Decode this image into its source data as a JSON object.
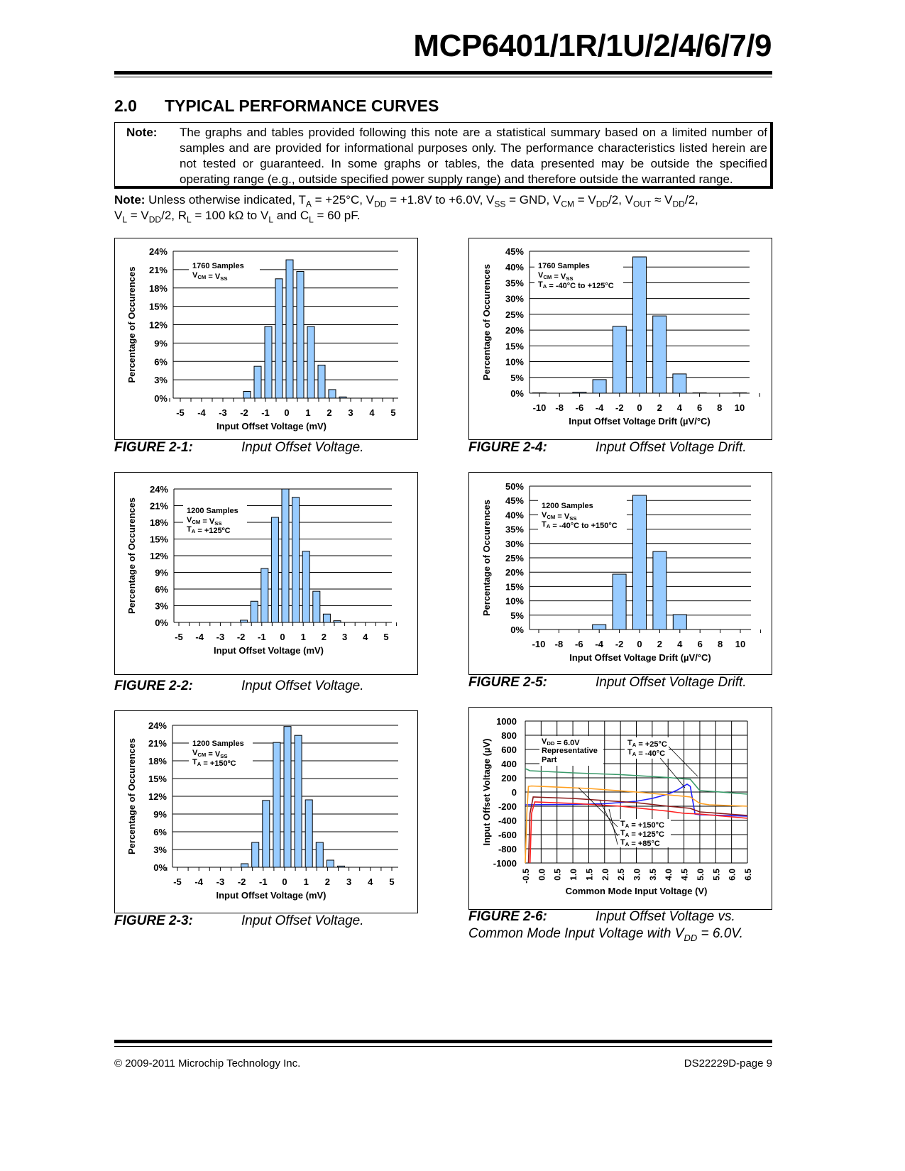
{
  "header": {
    "title": "MCP6401/1R/1U/2/4/6/7/9"
  },
  "section": {
    "number": "2.0",
    "title": "TYPICAL PERFORMANCE CURVES"
  },
  "note_box": {
    "label": "Note:",
    "text": "The graphs and tables provided following this note are a statistical summary based on a limited number of samples and are provided for informational purposes only. The performance characteristics listed herein are not tested or guaranteed. In some graphs or tables, the data presented may be outside the specified operating range (e.g., outside specified power supply range) and therefore outside the warranted range."
  },
  "conditions": {
    "line1": [
      {
        "t": "Note:",
        "b": true
      },
      {
        "t": " Unless otherwise indicated, T"
      },
      {
        "t": "A",
        "sub": true
      },
      {
        "t": " = +25°C, V"
      },
      {
        "t": "DD",
        "sub": true
      },
      {
        "t": " = +1.8V to +6.0V, V"
      },
      {
        "t": "SS",
        "sub": true
      },
      {
        "t": " = GND, V"
      },
      {
        "t": "CM",
        "sub": true
      },
      {
        "t": " = V"
      },
      {
        "t": "DD",
        "sub": true
      },
      {
        "t": "/2, V"
      },
      {
        "t": "OUT",
        "sub": true
      },
      {
        "t": " ≈ V"
      },
      {
        "t": "DD",
        "sub": true
      },
      {
        "t": "/2,"
      }
    ],
    "line2": [
      {
        "t": "V"
      },
      {
        "t": "L",
        "sub": true
      },
      {
        "t": " = V"
      },
      {
        "t": "DD",
        "sub": true
      },
      {
        "t": "/2, R"
      },
      {
        "t": "L",
        "sub": true
      },
      {
        "t": " = 100 kΩ to V"
      },
      {
        "t": "L",
        "sub": true
      },
      {
        "t": " and C"
      },
      {
        "t": "L",
        "sub": true
      },
      {
        "t": " = 60 pF."
      }
    ]
  },
  "figures": [
    {
      "label": "FIGURE 2-1:",
      "caption": [
        {
          "t": "Input Offset Voltage."
        }
      ]
    },
    {
      "label": "FIGURE 2-2:",
      "caption": [
        {
          "t": "Input Offset Voltage."
        }
      ]
    },
    {
      "label": "FIGURE 2-3:",
      "caption": [
        {
          "t": "Input Offset Voltage."
        }
      ]
    },
    {
      "label": "FIGURE 2-4:",
      "caption": [
        {
          "t": "Input Offset Voltage Drift."
        }
      ]
    },
    {
      "label": "FIGURE 2-5:",
      "caption": [
        {
          "t": "Input Offset Voltage Drift."
        }
      ]
    },
    {
      "label": "FIGURE 2-6:",
      "caption": [
        {
          "t": "Input Offset Voltage vs."
        }
      ],
      "caption2": [
        {
          "t": "Common Mode Input Voltage with V"
        },
        {
          "t": "DD",
          "sub": true
        },
        {
          "t": " = 6.0V."
        }
      ]
    }
  ],
  "chart_data": [
    {
      "type": "bar",
      "xlabel": "Input Offset Voltage (mV)",
      "ylabel": "Percentage of Occurences",
      "ylim": [
        0,
        24
      ],
      "yticks": [
        "0%",
        "3%",
        "6%",
        "9%",
        "12%",
        "15%",
        "18%",
        "21%",
        "24%"
      ],
      "xticks": [
        "-5",
        "-4",
        "-3",
        "-2",
        "-1",
        "0",
        "1",
        "2",
        "3",
        "4",
        "5"
      ],
      "x": [
        -2,
        -1.5,
        -1,
        -0.5,
        0,
        0.5,
        1,
        1.5,
        2,
        2.5
      ],
      "values": [
        1.1,
        5.2,
        11.7,
        19.5,
        22.6,
        20.7,
        11.7,
        5.4,
        1.4,
        0.2
      ],
      "annotation": [
        [
          {
            "t": "1760 Samples"
          }
        ],
        [
          {
            "t": "V"
          },
          {
            "t": "CM",
            "sub": true
          },
          {
            "t": " = V"
          },
          {
            "t": "SS",
            "sub": true
          }
        ]
      ],
      "grid": true
    },
    {
      "type": "bar",
      "xlabel": "Input Offset Voltage (mV)",
      "ylabel": "Percentage of Occurences",
      "ylim": [
        0,
        24
      ],
      "yticks": [
        "0%",
        "3%",
        "6%",
        "9%",
        "12%",
        "15%",
        "18%",
        "21%",
        "24%"
      ],
      "xticks": [
        "-5",
        "-4",
        "-3",
        "-2",
        "-1",
        "0",
        "1",
        "2",
        "3",
        "4",
        "5"
      ],
      "x": [
        -2,
        -1.5,
        -1,
        -0.5,
        0,
        0.5,
        1,
        1.5,
        2,
        2.5
      ],
      "values": [
        0.4,
        3.8,
        9.7,
        18.9,
        24.0,
        22.5,
        12.8,
        5.6,
        1.5,
        0.3
      ],
      "annotation": [
        [
          {
            "t": "1200 Samples"
          }
        ],
        [
          {
            "t": "V"
          },
          {
            "t": "CM",
            "sub": true
          },
          {
            "t": " = V"
          },
          {
            "t": "SS",
            "sub": true
          }
        ],
        [
          {
            "t": "T"
          },
          {
            "t": "A",
            "sub": true
          },
          {
            "t": " = +125ºC"
          }
        ]
      ],
      "grid": true
    },
    {
      "type": "bar",
      "xlabel": "Input Offset Voltage (mV)",
      "ylabel": "Percentage of Occurences",
      "ylim": [
        0,
        24
      ],
      "yticks": [
        "0%",
        "3%",
        "6%",
        "9%",
        "12%",
        "15%",
        "18%",
        "21%",
        "24%"
      ],
      "xticks": [
        "-5",
        "-4",
        "-3",
        "-2",
        "-1",
        "0",
        "1",
        "2",
        "3",
        "4",
        "5"
      ],
      "x": [
        -2,
        -1.5,
        -1,
        -0.5,
        0,
        0.5,
        1,
        1.5,
        2,
        2.5
      ],
      "values": [
        0.6,
        4.2,
        11.3,
        21.1,
        23.8,
        22.3,
        11.4,
        4.2,
        1.2,
        0.2
      ],
      "annotation": [
        [
          {
            "t": "1200 Samples"
          }
        ],
        [
          {
            "t": "V"
          },
          {
            "t": "CM",
            "sub": true
          },
          {
            "t": " = V"
          },
          {
            "t": "SS",
            "sub": true
          }
        ],
        [
          {
            "t": "T"
          },
          {
            "t": "A",
            "sub": true
          },
          {
            "t": " = +150ºC"
          }
        ]
      ],
      "grid": true
    },
    {
      "type": "bar",
      "xlabel": "Input Offset Voltage Drift (µV/°C)",
      "ylabel": "Percentage of Occurences",
      "ylim": [
        0,
        45
      ],
      "yticks": [
        "0%",
        "5%",
        "10%",
        "15%",
        "20%",
        "25%",
        "30%",
        "35%",
        "40%",
        "45%"
      ],
      "xticks": [
        "-10",
        "-8",
        "-6",
        "-4",
        "-2",
        "0",
        "2",
        "4",
        "6",
        "8",
        "10"
      ],
      "x": [
        -10,
        -6,
        -4,
        -2,
        0,
        2,
        4,
        6,
        10
      ],
      "values": [
        0.1,
        0.3,
        4.3,
        21.2,
        43.2,
        24.5,
        6.1,
        0.1,
        0.1
      ],
      "annotation": [
        [
          {
            "t": "1760 Samples"
          }
        ],
        [
          {
            "t": "V"
          },
          {
            "t": "CM",
            "sub": true
          },
          {
            "t": " = V"
          },
          {
            "t": "SS",
            "sub": true
          }
        ],
        [
          {
            "t": "T"
          },
          {
            "t": "A",
            "sub": true
          },
          {
            "t": " = -40°C to +125°C"
          }
        ]
      ],
      "grid": true
    },
    {
      "type": "bar",
      "xlabel": "Input Offset Voltage Drift (µV/°C)",
      "ylabel": "Percentage of Occurences",
      "ylim": [
        0,
        50
      ],
      "yticks": [
        "0%",
        "5%",
        "10%",
        "15%",
        "20%",
        "25%",
        "30%",
        "35%",
        "40%",
        "45%",
        "50%"
      ],
      "xticks": [
        "-10",
        "-8",
        "-6",
        "-4",
        "-2",
        "0",
        "2",
        "4",
        "6",
        "8",
        "10"
      ],
      "x": [
        -4,
        -2,
        0,
        2,
        4
      ],
      "values": [
        1.7,
        19.3,
        46.8,
        27.2,
        5.2
      ],
      "annotation": [
        [
          {
            "t": "1200 Samples"
          }
        ],
        [
          {
            "t": "V"
          },
          {
            "t": "CM",
            "sub": true
          },
          {
            "t": " = V"
          },
          {
            "t": "SS",
            "sub": true
          }
        ],
        [
          {
            "t": "T"
          },
          {
            "t": "A",
            "sub": true
          },
          {
            "t": " = -40°C to +150°C"
          }
        ]
      ],
      "grid": true
    },
    {
      "type": "line",
      "xlabel": "Common Mode Input Voltage (V)",
      "ylabel": "Input Offset Voltage (µV)",
      "xlim": [
        -0.5,
        6.5
      ],
      "ylim": [
        -1000,
        1000
      ],
      "xticks": [
        "-0.5",
        "0.0",
        "0.5",
        "1.0",
        "1.5",
        "2.0",
        "2.5",
        "3.0",
        "3.5",
        "4.0",
        "4.5",
        "5.0",
        "5.5",
        "6.0",
        "6.5"
      ],
      "yticks": [
        "-1000",
        "-800",
        "-600",
        "-400",
        "-200",
        "0",
        "200",
        "400",
        "600",
        "800",
        "1000"
      ],
      "grid": true,
      "series": [
        {
          "name": "TA = +25°C",
          "color": "#3a9a6a",
          "x": [
            -0.5,
            -0.35,
            1,
            2.5,
            4,
            4.5,
            4.7,
            4.85,
            5.0,
            5.5,
            6.5
          ],
          "y": [
            330,
            300,
            270,
            245,
            205,
            185,
            180,
            100,
            20,
            5,
            -30
          ]
        },
        {
          "name": "TA = -40°C",
          "color": "#1f1fff",
          "x": [
            -0.5,
            1,
            2,
            3,
            3.5,
            4,
            4.3,
            4.6,
            4.7,
            4.85,
            5.0,
            6.5
          ],
          "y": [
            -180,
            -175,
            -165,
            -130,
            -90,
            -30,
            30,
            110,
            80,
            -310,
            -320,
            -340
          ]
        },
        {
          "name": "TA = +85°C",
          "color": "#ffa020",
          "x": [
            -0.5,
            -0.45,
            -0.4,
            -0.3,
            1.5,
            3,
            4.5,
            4.7,
            5.0,
            5.3,
            6.5
          ],
          "y": [
            -1000,
            -300,
            80,
            85,
            50,
            0,
            -60,
            -70,
            -160,
            -180,
            -200
          ]
        },
        {
          "name": "TA = +125°C",
          "color": "#8b1a1a",
          "x": [
            -0.4,
            -0.35,
            -0.25,
            1,
            2,
            3,
            4,
            4.7,
            5.0,
            6.5
          ],
          "y": [
            -1000,
            -300,
            -70,
            -90,
            -120,
            -150,
            -200,
            -230,
            -280,
            -330
          ]
        },
        {
          "name": "TA = +150°C",
          "color": "#ff2020",
          "x": [
            -0.35,
            -0.3,
            -0.2,
            1,
            2.5,
            4,
            4.5,
            5,
            6.5
          ],
          "y": [
            -1000,
            -300,
            -140,
            -160,
            -200,
            -270,
            -300,
            -310,
            -370
          ]
        }
      ],
      "annotations": [
        [
          [
            {
              "t": "V"
            },
            {
              "t": "DD",
              "sub": true
            },
            {
              "t": " = 6.0V"
            }
          ],
          [
            {
              "t": "Representative"
            }
          ],
          [
            {
              "t": "Part"
            }
          ]
        ],
        [
          [
            {
              "t": "T"
            },
            {
              "t": "A",
              "sub": true
            },
            {
              "t": " = +25°C"
            }
          ],
          [
            {
              "t": "T"
            },
            {
              "t": "A",
              "sub": true
            },
            {
              "t": " = -40°C"
            }
          ]
        ],
        [
          [
            {
              "t": "T"
            },
            {
              "t": "A",
              "sub": true
            },
            {
              "t": " = +150°C"
            }
          ],
          [
            {
              "t": "T"
            },
            {
              "t": "A",
              "sub": true
            },
            {
              "t": " = +125°C"
            }
          ],
          [
            {
              "t": "T"
            },
            {
              "t": "A",
              "sub": true
            },
            {
              "t": " = +85°C"
            }
          ]
        ]
      ]
    }
  ],
  "footer": {
    "copyright": "© 2009-2011 Microchip Technology Inc.",
    "page": "DS22229D-page 9"
  },
  "colors": {
    "bar_fill": "#99ccff",
    "bar_stroke": "#000000"
  }
}
